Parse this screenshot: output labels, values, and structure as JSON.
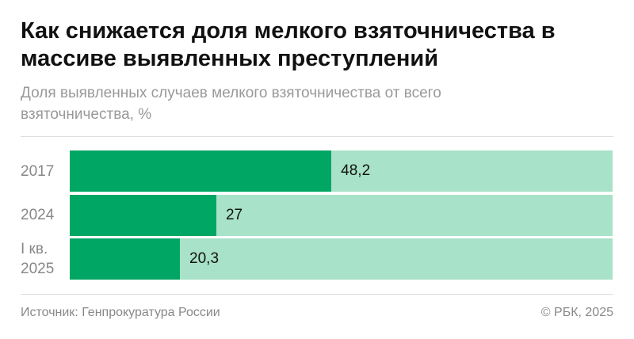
{
  "chart_data": {
    "type": "bar",
    "orientation": "horizontal",
    "title": "Как снижается доля мелкого взяточничества в массиве выявленных преступлений",
    "subtitle": "Доля выявленных случаев мелкого взяточничества от всего взяточничества, %",
    "categories": [
      "2017",
      "2024",
      "I кв. 2025"
    ],
    "values": [
      48.2,
      27,
      20.3
    ],
    "value_labels": [
      "48,2",
      "27",
      "20,3"
    ],
    "color": "#00a664",
    "track_color": "#a8e2c8",
    "xlim": [
      0,
      100
    ],
    "source": "Источник: Генпрокуратура России",
    "credit": "© РБК, 2025"
  }
}
